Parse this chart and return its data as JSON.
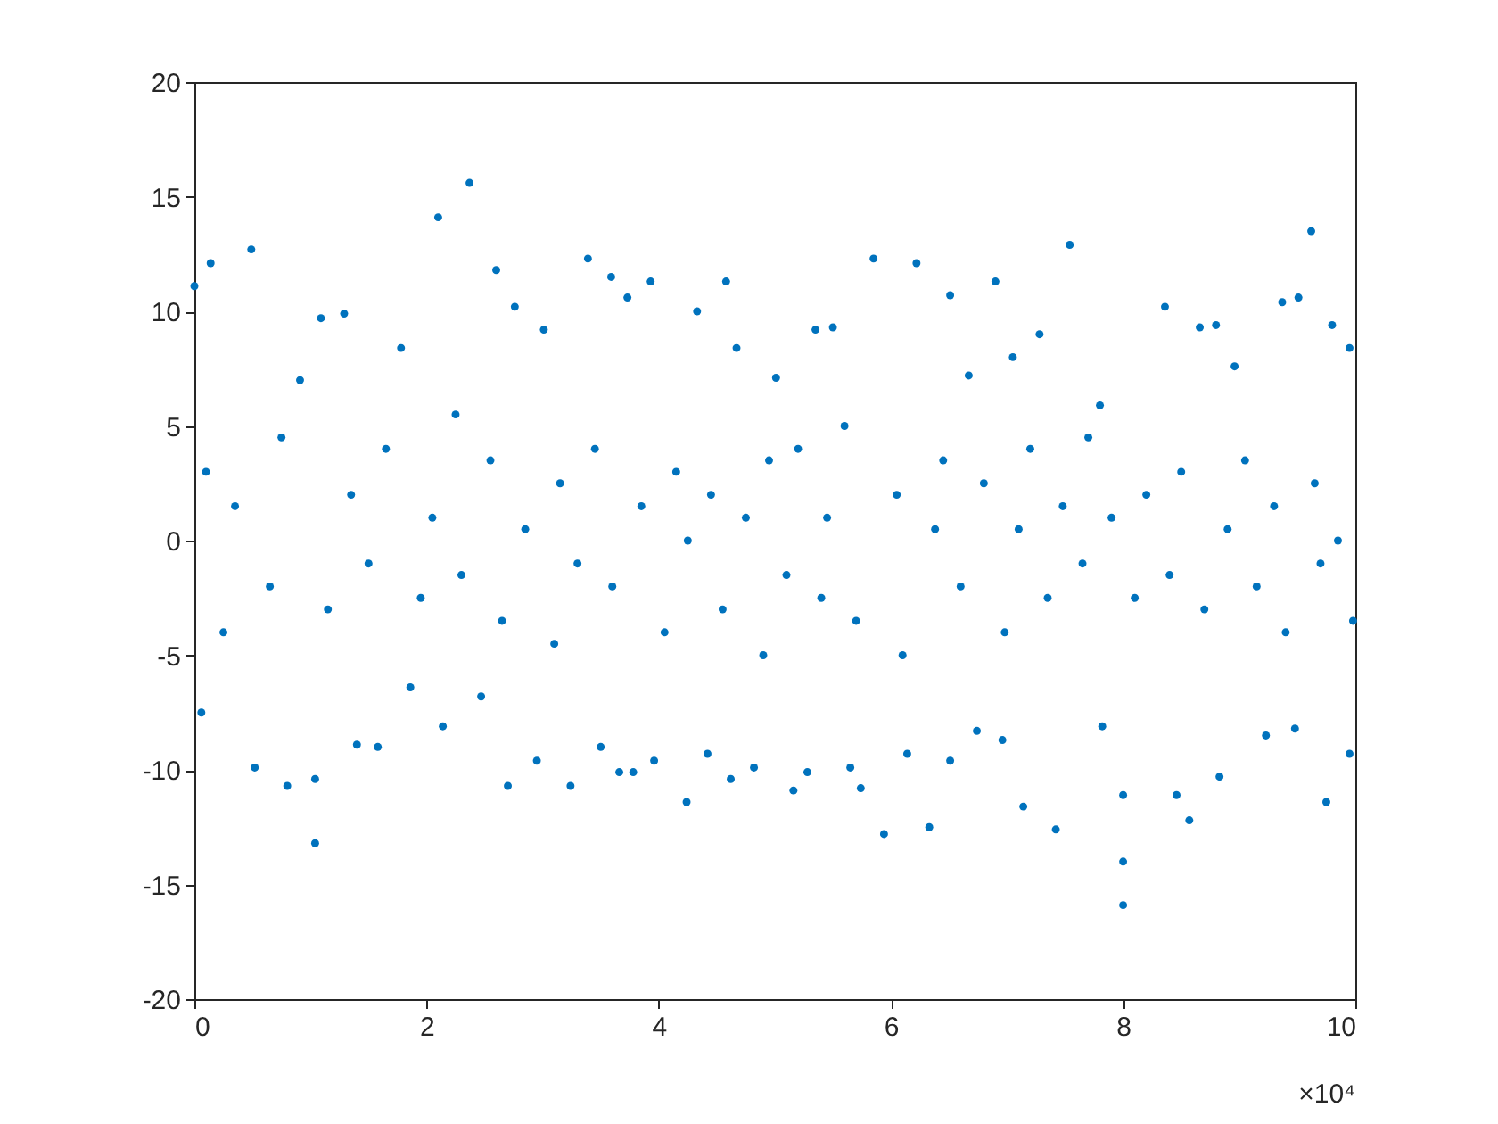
{
  "chart_data": {
    "type": "scatter",
    "color": "#0072bd",
    "marker": "circle",
    "x": [
      0,
      0.06,
      0.1,
      0.14,
      0.25,
      0.35,
      0.49,
      0.52,
      0.65,
      0.75,
      0.8,
      0.91,
      1.04,
      1.04,
      1.09,
      1.15,
      1.29,
      1.35,
      1.4,
      1.5,
      1.58,
      1.65,
      1.78,
      1.86,
      1.95,
      2.05,
      2.1,
      2.14,
      2.25,
      2.3,
      2.37,
      2.47,
      2.55,
      2.6,
      2.65,
      2.7,
      2.76,
      2.85,
      2.95,
      3.01,
      3.1,
      3.15,
      3.24,
      3.3,
      3.39,
      3.45,
      3.5,
      3.59,
      3.6,
      3.66,
      3.73,
      3.78,
      3.85,
      3.93,
      3.96,
      4.05,
      4.15,
      4.24,
      4.25,
      4.33,
      4.42,
      4.45,
      4.55,
      4.58,
      4.62,
      4.67,
      4.75,
      4.82,
      4.9,
      4.95,
      5.01,
      5.1,
      5.16,
      5.2,
      5.28,
      5.35,
      5.4,
      5.45,
      5.5,
      5.6,
      5.65,
      5.7,
      5.74,
      5.85,
      5.94,
      6.05,
      6.1,
      6.14,
      6.22,
      6.33,
      6.38,
      6.45,
      6.51,
      6.51,
      6.6,
      6.67,
      6.74,
      6.8,
      6.9,
      6.96,
      6.98,
      7.05,
      7.1,
      7.14,
      7.2,
      7.28,
      7.35,
      7.42,
      7.48,
      7.54,
      7.65,
      7.7,
      7.8,
      7.82,
      7.9,
      8,
      8,
      8,
      8.1,
      8.2,
      8.36,
      8.4,
      8.46,
      8.5,
      8.57,
      8.66,
      8.7,
      8.8,
      8.83,
      8.9,
      8.96,
      9.05,
      9.15,
      9.23,
      9.3,
      9.37,
      9.4,
      9.48,
      9.51,
      9.62,
      9.65,
      9.7,
      9.75,
      9.8,
      9.85,
      9.95,
      9.95,
      9.98
    ],
    "values": [
      11.1,
      -7.5,
      3.0,
      12.1,
      -4.0,
      1.5,
      12.7,
      -9.9,
      -2.0,
      4.5,
      -10.7,
      7.0,
      -13.2,
      -10.4,
      9.7,
      -3.0,
      9.9,
      2.0,
      -8.9,
      -1.0,
      -9.0,
      4.0,
      8.4,
      -6.4,
      -2.5,
      1.0,
      14.1,
      -8.1,
      5.5,
      -1.5,
      15.6,
      -6.8,
      3.5,
      11.8,
      -3.5,
      -10.7,
      10.2,
      0.5,
      -9.6,
      9.2,
      -4.5,
      2.5,
      -10.7,
      -1.0,
      12.3,
      4.0,
      -9.0,
      11.5,
      -2.0,
      -10.1,
      10.6,
      -10.1,
      1.5,
      11.3,
      -9.6,
      -4.0,
      3.0,
      -11.4,
      0.0,
      10.0,
      -9.3,
      2.0,
      -3.0,
      11.3,
      -10.4,
      8.4,
      1.0,
      -9.9,
      -5.0,
      3.5,
      7.1,
      -1.5,
      -10.9,
      4.0,
      -10.1,
      9.2,
      -2.5,
      1.0,
      9.3,
      5.0,
      -9.9,
      -3.5,
      -10.8,
      12.3,
      -12.8,
      2.0,
      -5.0,
      -9.3,
      12.1,
      -12.5,
      0.5,
      3.5,
      10.7,
      -9.6,
      -2.0,
      7.2,
      -8.3,
      2.5,
      11.3,
      -8.7,
      -4.0,
      8.0,
      0.5,
      -11.6,
      4.0,
      9.0,
      -2.5,
      -12.6,
      1.5,
      12.9,
      -1.0,
      4.5,
      5.9,
      -8.1,
      1.0,
      -15.9,
      -14.0,
      -11.1,
      -2.5,
      2.0,
      10.2,
      -1.5,
      -11.1,
      3.0,
      -12.2,
      9.3,
      -3.0,
      9.4,
      -10.3,
      0.5,
      7.6,
      3.5,
      -2.0,
      -8.5,
      1.5,
      10.4,
      -4.0,
      -8.2,
      10.6,
      13.5,
      2.5,
      -1.0,
      -11.4,
      9.4,
      0.0,
      8.4,
      -9.3,
      -3.5
    ],
    "xlim": [
      0,
      10
    ],
    "xticks": [
      0,
      2,
      4,
      6,
      8,
      10
    ],
    "ylim": [
      -20,
      20
    ],
    "yticks": [
      -20,
      -15,
      -10,
      -5,
      0,
      5,
      10,
      15,
      20
    ],
    "annotations": [
      "×10⁴"
    ]
  }
}
